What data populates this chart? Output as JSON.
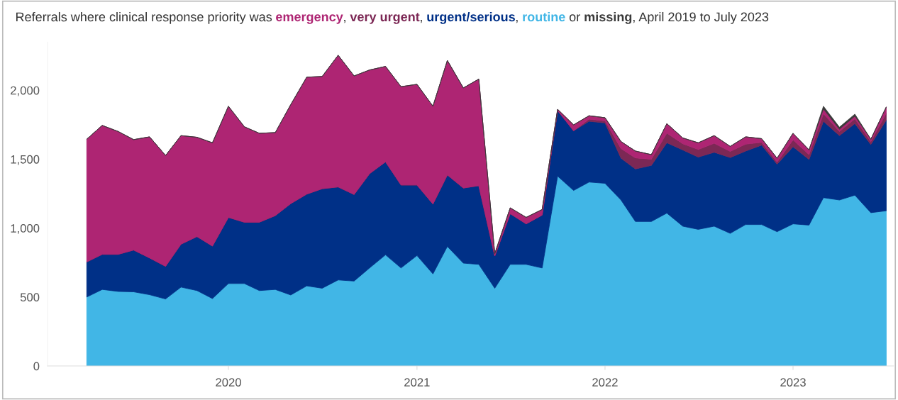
{
  "chart_data": {
    "type": "area",
    "stacked": true,
    "title": "Referrals where clinical response priority was",
    "annotations": [
      ",",
      ",",
      ",",
      "or",
      ", April 2019 to July 2023"
    ],
    "x": [
      "2019-04",
      "2019-05",
      "2019-06",
      "2019-07",
      "2019-08",
      "2019-09",
      "2019-10",
      "2019-11",
      "2019-12",
      "2020-01",
      "2020-02",
      "2020-03",
      "2020-04",
      "2020-05",
      "2020-06",
      "2020-07",
      "2020-08",
      "2020-09",
      "2020-10",
      "2020-11",
      "2020-12",
      "2021-01",
      "2021-02",
      "2021-03",
      "2021-04",
      "2021-05",
      "2021-06",
      "2021-07",
      "2021-08",
      "2021-09",
      "2021-10",
      "2021-11",
      "2021-12",
      "2022-01",
      "2022-02",
      "2022-03",
      "2022-04",
      "2022-05",
      "2022-06",
      "2022-07",
      "2022-08",
      "2022-09",
      "2022-10",
      "2022-11",
      "2022-12",
      "2023-01",
      "2023-02",
      "2023-03",
      "2023-04",
      "2023-05",
      "2023-06",
      "2023-07"
    ],
    "series": [
      {
        "name": "routine",
        "color": "#41b6e6",
        "values": [
          500,
          555,
          541,
          538,
          517,
          486,
          572,
          547,
          489,
          598,
          598,
          547,
          555,
          515,
          581,
          564,
          624,
          616,
          711,
          806,
          711,
          801,
          668,
          867,
          746,
          737,
          564,
          737,
          737,
          711,
          1377,
          1273,
          1334,
          1325,
          1204,
          1048,
          1048,
          1109,
          1014,
          991,
          1014,
          962,
          1026,
          1026,
          974,
          1031,
          1022,
          1221,
          1204,
          1239,
          1112,
          1126
        ]
      },
      {
        "name": "urgent/serious",
        "color": "#003087",
        "values": [
          255,
          255,
          269,
          303,
          267,
          237,
          312,
          392,
          381,
          480,
          445,
          496,
          536,
          663,
          666,
          722,
          675,
          628,
          684,
          675,
          602,
          512,
          507,
          519,
          545,
          571,
          234,
          368,
          294,
          384,
          476,
          433,
          441,
          438,
          303,
          381,
          407,
          510,
          553,
          524,
          536,
          550,
          533,
          576,
          490,
          559,
          476,
          554,
          467,
          519,
          495,
          658
        ]
      },
      {
        "name": "very urgent",
        "color": "#7c2855",
        "values": [
          0,
          0,
          0,
          0,
          0,
          0,
          0,
          0,
          0,
          0,
          0,
          0,
          0,
          0,
          0,
          0,
          0,
          0,
          0,
          0,
          0,
          0,
          0,
          0,
          0,
          0,
          0,
          0,
          0,
          0,
          0,
          0,
          15,
          15,
          70,
          80,
          45,
          70,
          45,
          55,
          65,
          45,
          50,
          20,
          15,
          50,
          35,
          55,
          30,
          35,
          20,
          50
        ]
      },
      {
        "name": "emergency",
        "color": "#ae2573",
        "values": [
          890,
          935,
          891,
          801,
          878,
          804,
          787,
          720,
          749,
          806,
          692,
          645,
          602,
          718,
          848,
          814,
          955,
          860,
          752,
          692,
          713,
          730,
          709,
          830,
          726,
          773,
          17,
          42,
          47,
          40,
          9,
          43,
          25,
          23,
          51,
          50,
          33,
          69,
          42,
          49,
          56,
          36,
          53,
          27,
          28,
          48,
          34,
          34,
          16,
          19,
          18,
          45
        ]
      },
      {
        "name": "missing",
        "color": "#3a3a3a",
        "values": [
          0,
          0,
          0,
          0,
          0,
          0,
          0,
          0,
          0,
          0,
          0,
          0,
          0,
          0,
          0,
          0,
          0,
          0,
          0,
          0,
          0,
          0,
          0,
          0,
          0,
          0,
          0,
          0,
          0,
          0,
          0,
          0,
          0,
          0,
          0,
          0,
          0,
          0,
          0,
          0,
          0,
          0,
          0,
          0,
          0,
          0,
          0,
          20,
          15,
          15,
          0,
          0
        ]
      }
    ],
    "xlim": [
      "2019-01-15",
      "2023-07-15"
    ],
    "xticks": [
      {
        "value": "2020-01",
        "label": "2020"
      },
      {
        "value": "2021-01",
        "label": "2021"
      },
      {
        "value": "2022-01",
        "label": "2022"
      },
      {
        "value": "2023-01",
        "label": "2023"
      }
    ],
    "ylim": [
      0,
      2350
    ],
    "yticks": [
      0,
      500,
      {
        "value": 1000,
        "label": "1,000"
      },
      {
        "value": 1500,
        "label": "1,500"
      },
      {
        "value": 2000,
        "label": "2,000"
      }
    ]
  }
}
